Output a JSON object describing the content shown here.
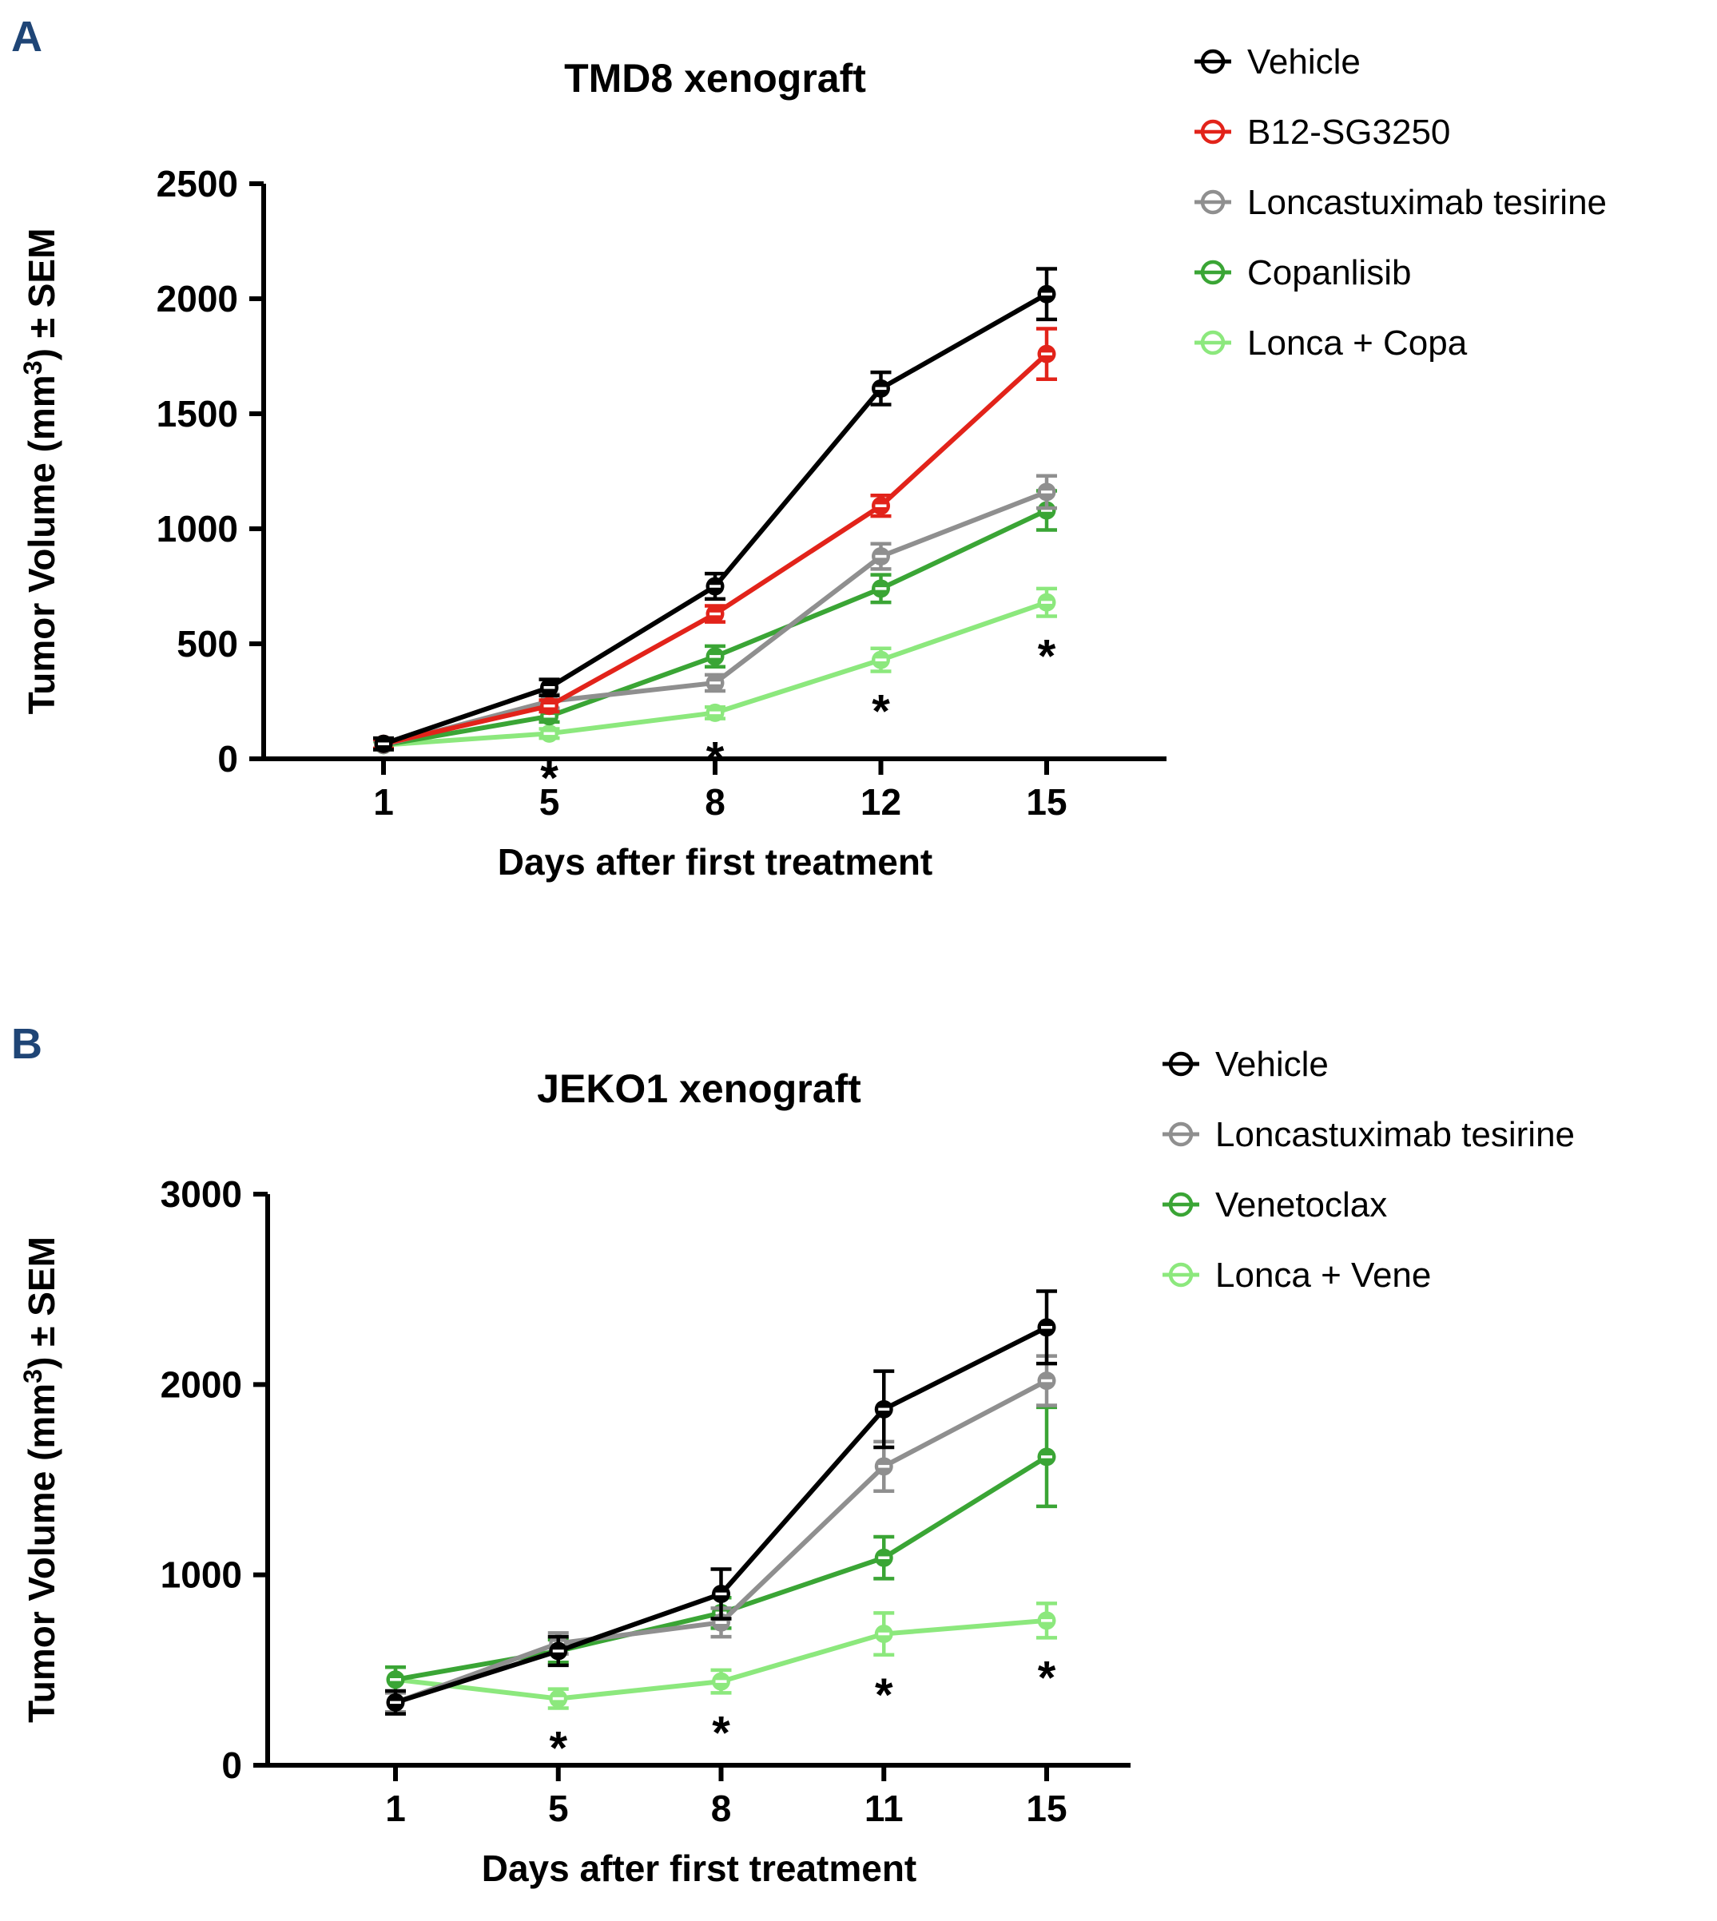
{
  "colors": {
    "background": "#ffffff",
    "panel_label": "#1f4576",
    "axis": "#000000"
  },
  "significance_note": "*",
  "chart_data": [
    {
      "type": "line",
      "panel_label": "A",
      "title": "TMD8 xenograft",
      "xlabel": "Days after first treatment",
      "ylabel": "Tumor Volume (mm³) ± SEM",
      "x": [
        1,
        5,
        8,
        12,
        15
      ],
      "ylim": [
        0,
        2500
      ],
      "yticks": [
        0,
        500,
        1000,
        1500,
        2000,
        2500
      ],
      "error_bars": "SEM",
      "marker": "circle-with-dash",
      "legend_position": "outside-top-right",
      "series": [
        {
          "name": "Vehicle",
          "color": "#000000",
          "values": [
            65,
            310,
            750,
            1610,
            2020
          ],
          "errors": [
            25,
            35,
            55,
            70,
            110
          ]
        },
        {
          "name": "B12-SG3250",
          "color": "#e2231a",
          "values": [
            65,
            230,
            630,
            1100,
            1760
          ],
          "errors": [
            20,
            25,
            35,
            45,
            110
          ]
        },
        {
          "name": "Loncastuximab tesirine",
          "color": "#8f8f8f",
          "values": [
            60,
            250,
            330,
            880,
            1160
          ],
          "errors": [
            20,
            30,
            35,
            55,
            70
          ]
        },
        {
          "name": "Copanlisib",
          "color": "#3aa535",
          "values": [
            60,
            185,
            445,
            740,
            1080
          ],
          "errors": [
            20,
            25,
            45,
            60,
            85
          ]
        },
        {
          "name": "Lonca + Copa",
          "color": "#8ce87d",
          "values": [
            60,
            110,
            200,
            430,
            680
          ],
          "errors": [
            15,
            20,
            25,
            50,
            60
          ]
        }
      ],
      "significance": {
        "symbol": "*",
        "x": [
          5,
          8,
          12,
          15
        ]
      }
    },
    {
      "type": "line",
      "panel_label": "B",
      "title": "JEKO1 xenograft",
      "xlabel": "Days after first treatment",
      "ylabel": "Tumor Volume (mm³) ± SEM",
      "x": [
        1,
        5,
        8,
        11,
        15
      ],
      "ylim": [
        0,
        3000
      ],
      "yticks": [
        0,
        1000,
        2000,
        3000
      ],
      "error_bars": "SEM",
      "marker": "circle-with-dash",
      "legend_position": "outside-top-right",
      "series": [
        {
          "name": "Vehicle",
          "color": "#000000",
          "values": [
            330,
            600,
            900,
            1870,
            2300
          ],
          "errors": [
            60,
            75,
            130,
            200,
            190
          ]
        },
        {
          "name": "Loncastuximab tesirine",
          "color": "#8f8f8f",
          "values": [
            330,
            640,
            750,
            1570,
            2020
          ],
          "errors": [
            50,
            55,
            75,
            130,
            130
          ]
        },
        {
          "name": "Venetoclax",
          "color": "#3aa535",
          "values": [
            450,
            600,
            800,
            1090,
            1620
          ],
          "errors": [
            65,
            60,
            80,
            110,
            260
          ]
        },
        {
          "name": "Lonca + Vene",
          "color": "#8ce87d",
          "values": [
            450,
            350,
            440,
            690,
            760
          ],
          "errors": [
            65,
            50,
            60,
            110,
            90
          ]
        }
      ],
      "significance": {
        "symbol": "*",
        "x": [
          5,
          8,
          11,
          15
        ]
      }
    }
  ]
}
